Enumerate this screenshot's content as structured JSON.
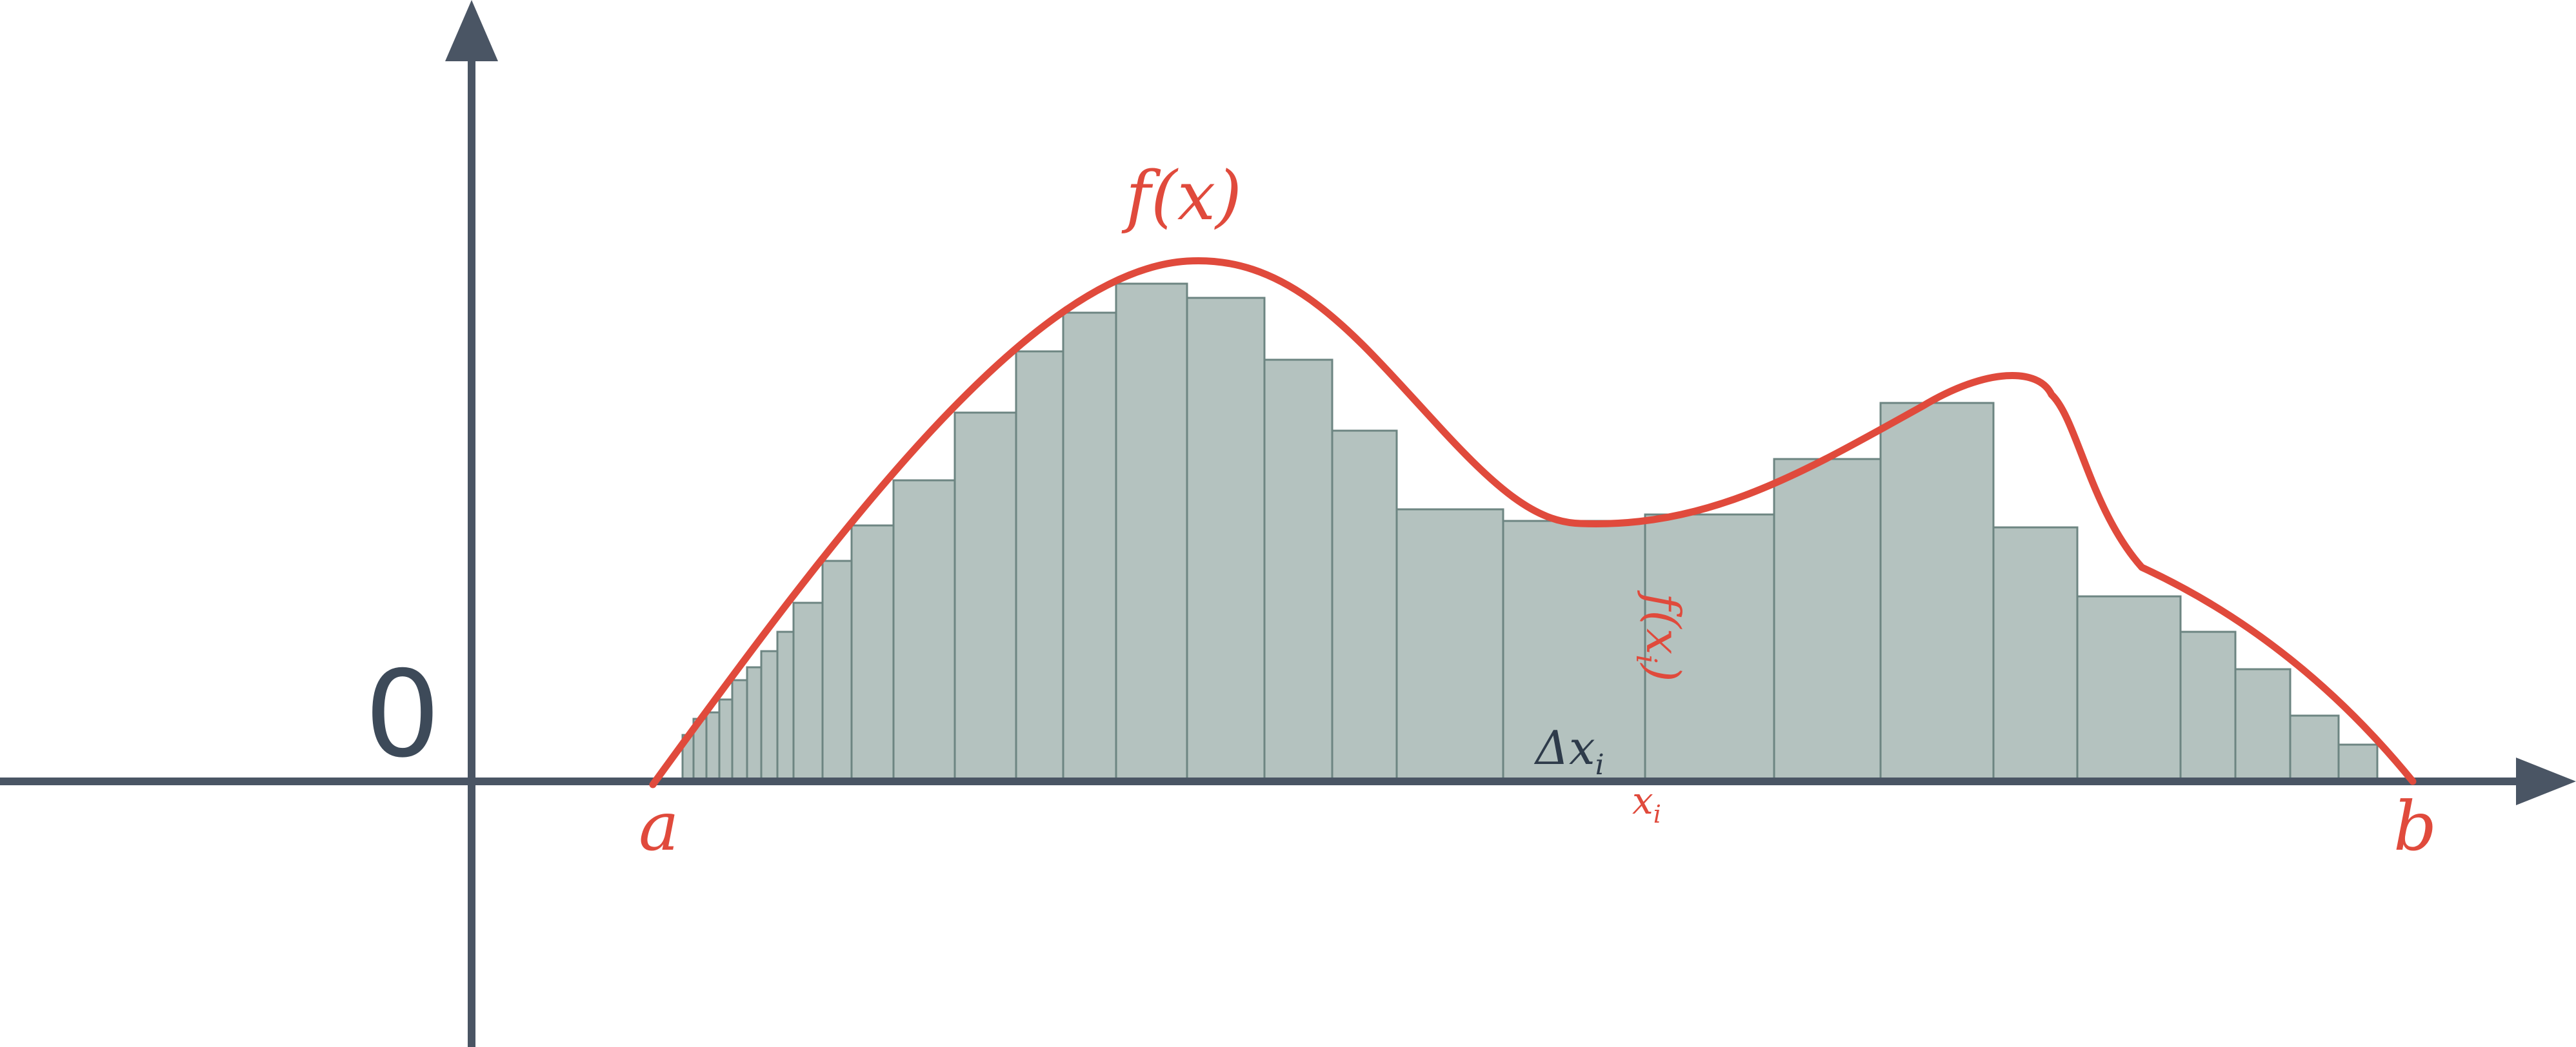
{
  "diagram": {
    "origin_label": "0",
    "labels": {
      "a": "a",
      "b": "b",
      "curve": "f(x)",
      "xi": "x",
      "xi_sub": "i",
      "fxi_rotated": "f(x",
      "fxi_sub": "i",
      "fxi_close": ")",
      "delta": "Δx",
      "delta_sub": "i"
    },
    "colors": {
      "axis": "#4a5564",
      "curve": "#e04a3c",
      "bar_fill": "#b4c2bf",
      "bar_edge": "#6d8582",
      "text_dark": "#2e3b4a"
    }
  }
}
